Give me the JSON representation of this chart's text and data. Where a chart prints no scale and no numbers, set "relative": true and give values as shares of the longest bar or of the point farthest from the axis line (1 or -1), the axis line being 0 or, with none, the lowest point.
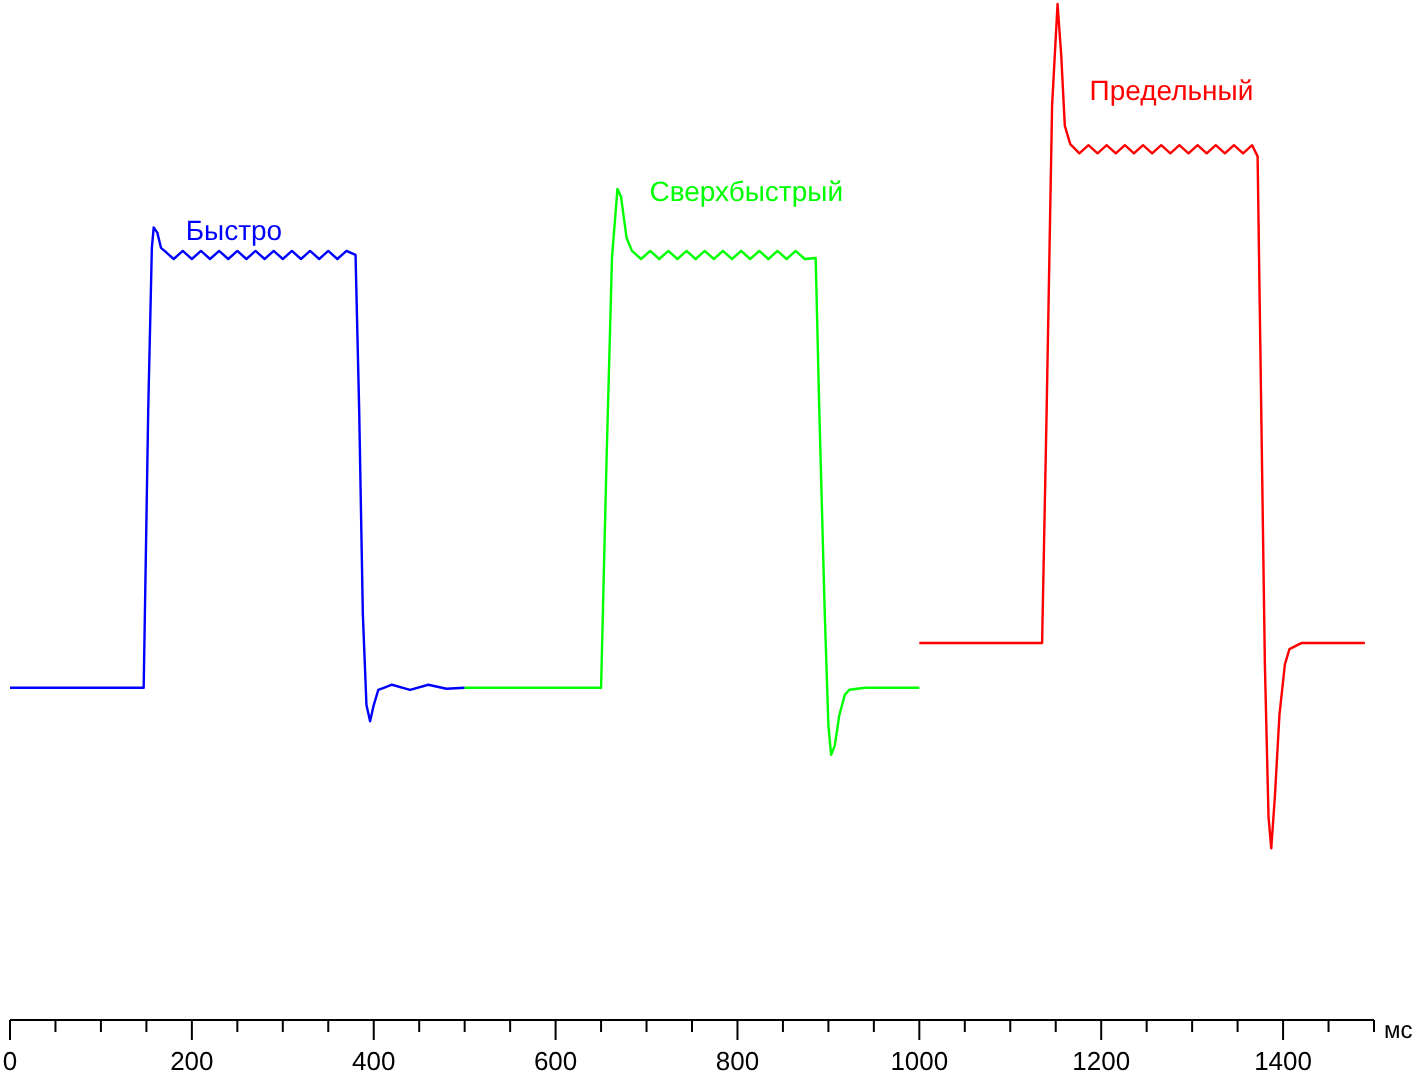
{
  "chart_data": {
    "type": "line",
    "relative": true,
    "xlabel": "мс",
    "xlim": [
      0,
      1500
    ],
    "xticks": [
      0,
      {
        "value": 50,
        "label": null
      },
      {
        "value": 100,
        "label": null
      },
      {
        "value": 150,
        "label": null
      },
      200,
      {
        "value": 250,
        "label": null
      },
      {
        "value": 300,
        "label": null
      },
      {
        "value": 350,
        "label": null
      },
      400,
      {
        "value": 450,
        "label": null
      },
      {
        "value": 500,
        "label": null
      },
      {
        "value": 550,
        "label": null
      },
      600,
      {
        "value": 650,
        "label": null
      },
      {
        "value": 700,
        "label": null
      },
      {
        "value": 750,
        "label": null
      },
      800,
      {
        "value": 850,
        "label": null
      },
      {
        "value": 900,
        "label": null
      },
      {
        "value": 950,
        "label": null
      },
      1000,
      {
        "value": 1050,
        "label": null
      },
      {
        "value": 1100,
        "label": null
      },
      {
        "value": 1150,
        "label": null
      },
      1200,
      {
        "value": 1250,
        "label": null
      },
      {
        "value": 1300,
        "label": null
      },
      {
        "value": 1350,
        "label": null
      },
      1400,
      {
        "value": 1450,
        "label": null
      },
      {
        "value": 1500,
        "label": null
      }
    ],
    "grid": false,
    "marker": "none",
    "line_style": "solid",
    "series": [
      {
        "name": "Быстро",
        "color": "#0000ff",
        "x": [
          0,
          140,
          147,
          152,
          156,
          158,
          162,
          166,
          170,
          180,
          190,
          200,
          210,
          220,
          230,
          240,
          250,
          260,
          270,
          280,
          290,
          300,
          310,
          320,
          330,
          340,
          350,
          360,
          370,
          380,
          384,
          388,
          392,
          396,
          400,
          405,
          411,
          420,
          440,
          460,
          480,
          500
        ],
        "values": [
          0.327,
          0.327,
          0.327,
          0.6,
          0.76,
          0.78,
          0.775,
          0.76,
          0.757,
          0.749,
          0.757,
          0.749,
          0.757,
          0.749,
          0.757,
          0.749,
          0.757,
          0.749,
          0.757,
          0.749,
          0.757,
          0.749,
          0.757,
          0.749,
          0.757,
          0.749,
          0.757,
          0.749,
          0.757,
          0.753,
          0.6,
          0.4,
          0.31,
          0.294,
          0.31,
          0.325,
          0.327,
          0.33,
          0.325,
          0.33,
          0.326,
          0.327
        ]
      },
      {
        "name": "Сверхбыстрый",
        "color": "#00ff00",
        "x": [
          500,
          550,
          600,
          650,
          656,
          662,
          668,
          672,
          678,
          684,
          694,
          704,
          714,
          724,
          734,
          744,
          754,
          764,
          774,
          784,
          794,
          804,
          814,
          824,
          834,
          844,
          854,
          864,
          874,
          886,
          890,
          896,
          900,
          903,
          907,
          912,
          918,
          923,
          940,
          960,
          980,
          1000
        ],
        "values": [
          0.327,
          0.327,
          0.327,
          0.327,
          0.55,
          0.75,
          0.818,
          0.81,
          0.77,
          0.757,
          0.749,
          0.757,
          0.749,
          0.757,
          0.749,
          0.757,
          0.749,
          0.757,
          0.749,
          0.757,
          0.749,
          0.757,
          0.749,
          0.757,
          0.749,
          0.757,
          0.749,
          0.757,
          0.749,
          0.75,
          0.6,
          0.4,
          0.29,
          0.261,
          0.27,
          0.3,
          0.32,
          0.325,
          0.327,
          0.327,
          0.327,
          0.327
        ]
      },
      {
        "name": "Предельный",
        "color": "#ff0000",
        "x": [
          1000,
          1050,
          1100,
          1135,
          1140,
          1146,
          1152,
          1156,
          1160,
          1166,
          1176,
          1186,
          1196,
          1206,
          1216,
          1226,
          1236,
          1246,
          1256,
          1266,
          1276,
          1286,
          1296,
          1306,
          1316,
          1326,
          1336,
          1346,
          1356,
          1366,
          1372,
          1376,
          1380,
          1384,
          1387,
          1391,
          1396,
          1402,
          1407,
          1420,
          1460,
          1490
        ],
        "values": [
          0.371,
          0.371,
          0.371,
          0.371,
          0.6,
          0.9,
          1,
          0.95,
          0.88,
          0.862,
          0.853,
          0.861,
          0.853,
          0.861,
          0.853,
          0.861,
          0.853,
          0.861,
          0.853,
          0.861,
          0.853,
          0.861,
          0.853,
          0.861,
          0.853,
          0.861,
          0.853,
          0.861,
          0.853,
          0.861,
          0.85,
          0.6,
          0.35,
          0.2,
          0.169,
          0.22,
          0.3,
          0.35,
          0.365,
          0.371,
          0.371,
          0.371
        ]
      }
    ]
  }
}
